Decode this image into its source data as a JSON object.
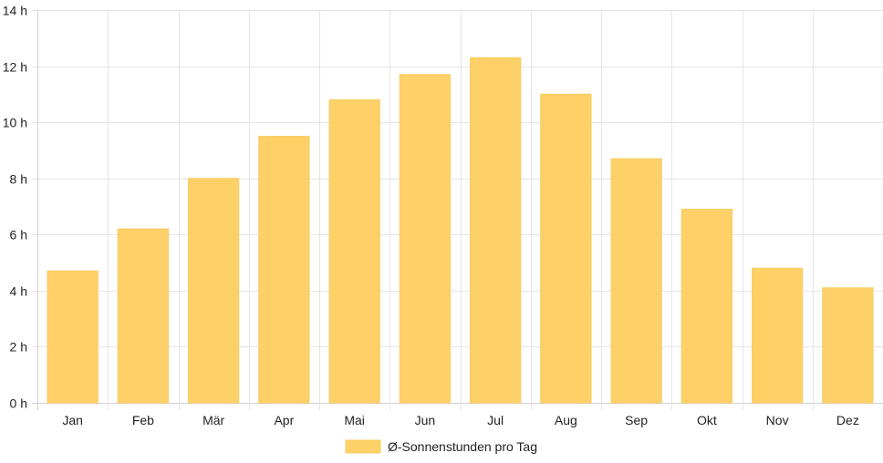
{
  "chart_data": {
    "type": "bar",
    "categories": [
      "Jan",
      "Feb",
      "Mär",
      "Apr",
      "Mai",
      "Jun",
      "Jul",
      "Aug",
      "Sep",
      "Okt",
      "Nov",
      "Dez"
    ],
    "series": [
      {
        "name": "Ø-Sonnenstunden pro Tag",
        "values": [
          4.7,
          6.2,
          8.0,
          9.5,
          10.8,
          11.7,
          12.3,
          11.0,
          8.7,
          6.9,
          4.8,
          4.1
        ],
        "color": "#fdd068",
        "border_color": "#f9cc62"
      }
    ],
    "y_ticks": [
      "0 h",
      "2 h",
      "4 h",
      "6 h",
      "8 h",
      "10 h",
      "12 h",
      "14 h"
    ],
    "ylim": [
      0,
      14
    ],
    "grid": true,
    "legend_position": "bottom",
    "colors": {
      "grid": "#e5e5e5",
      "axis": "#d0d0d0",
      "text": "#222222"
    }
  }
}
